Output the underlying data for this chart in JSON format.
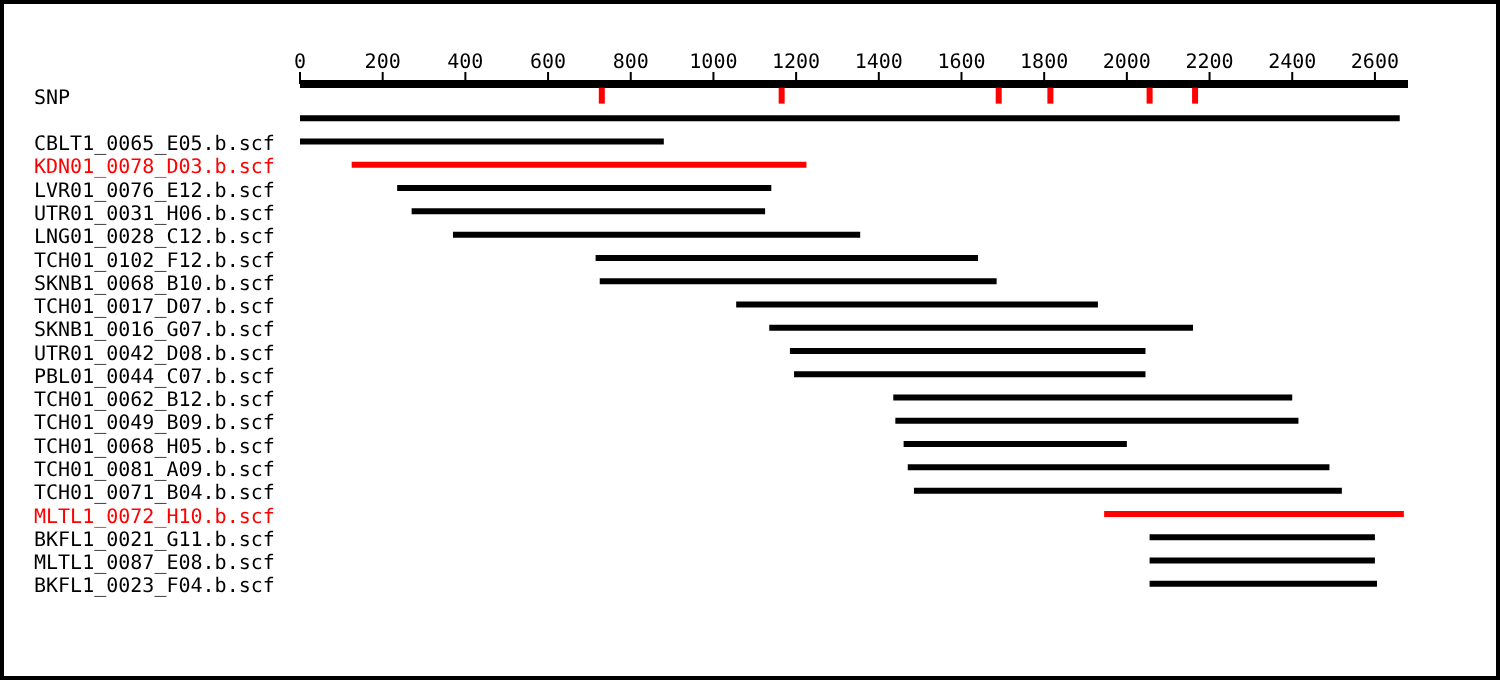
{
  "chart_data": {
    "type": "bar",
    "orientation": "horizontal",
    "marker": "square",
    "xlim": [
      0,
      2680
    ],
    "xticks": [
      0,
      200,
      400,
      600,
      800,
      1000,
      1200,
      1400,
      1600,
      1800,
      2000,
      2200,
      2400,
      2600
    ],
    "categories": [
      "SNP",
      null,
      "CBLT1_0065_E05.b.scf",
      "KDN01_0078_D03.b.scf",
      "LVR01_0076_E12.b.scf",
      "UTR01_0031_H06.b.scf",
      "LNG01_0028_C12.b.scf",
      "TCH01_0102_F12.b.scf",
      "SKNB1_0068_B10.b.scf",
      "TCH01_0017_D07.b.scf",
      "SKNB1_0016_G07.b.scf",
      "UTR01_0042_D08.b.scf",
      "PBL01_0044_C07.b.scf",
      "TCH01_0062_B12.b.scf",
      "TCH01_0049_B09.b.scf",
      "TCH01_0068_H05.b.scf",
      "TCH01_0081_A09.b.scf",
      "TCH01_0071_B04.b.scf",
      "MLTL1_0072_H10.b.scf",
      "BKFL1_0021_G11.b.scf",
      "MLTL1_0087_E08.b.scf",
      "BKFL1_0023_F04.b.scf"
    ],
    "series": [
      {
        "base": [
          null,
          0,
          0,
          125,
          235,
          270,
          370,
          715,
          725,
          1055,
          1135,
          1185,
          1195,
          1435,
          1440,
          1460,
          1470,
          1485,
          1945,
          2055,
          2055,
          2055
        ],
        "values": [
          null,
          2660,
          880,
          1100,
          905,
          855,
          985,
          925,
          960,
          875,
          1025,
          860,
          850,
          965,
          975,
          540,
          1020,
          1035,
          725,
          545,
          545,
          550
        ],
        "colors": [
          null,
          "#000000",
          "#000000",
          "#ff0000",
          "#000000",
          "#000000",
          "#000000",
          "#000000",
          "#000000",
          "#000000",
          "#000000",
          "#000000",
          "#000000",
          "#000000",
          "#000000",
          "#000000",
          "#000000",
          "#000000",
          "#ff0000",
          "#000000",
          "#000000",
          "#000000"
        ]
      },
      {
        "type": "scatter",
        "color": "#ff0000",
        "values": [
          730,
          null,
          null,
          null,
          null,
          null,
          null,
          null,
          null,
          null,
          null,
          null,
          null,
          null,
          null,
          null,
          null,
          null,
          null,
          null,
          null,
          null
        ]
      },
      {
        "type": "scatter",
        "color": "#ff0000",
        "values": [
          1165,
          null,
          null,
          null,
          null,
          null,
          null,
          null,
          null,
          null,
          null,
          null,
          null,
          null,
          null,
          null,
          null,
          null,
          null,
          null,
          null,
          null
        ]
      },
      {
        "type": "scatter",
        "color": "#ff0000",
        "values": [
          1690,
          null,
          null,
          null,
          null,
          null,
          null,
          null,
          null,
          null,
          null,
          null,
          null,
          null,
          null,
          null,
          null,
          null,
          null,
          null,
          null,
          null
        ]
      },
      {
        "type": "scatter",
        "color": "#ff0000",
        "values": [
          1815,
          null,
          null,
          null,
          null,
          null,
          null,
          null,
          null,
          null,
          null,
          null,
          null,
          null,
          null,
          null,
          null,
          null,
          null,
          null,
          null,
          null
        ]
      },
      {
        "type": "scatter",
        "color": "#ff0000",
        "values": [
          2055,
          null,
          null,
          null,
          null,
          null,
          null,
          null,
          null,
          null,
          null,
          null,
          null,
          null,
          null,
          null,
          null,
          null,
          null,
          null,
          null,
          null
        ]
      },
      {
        "type": "scatter",
        "color": "#ff0000",
        "values": [
          2165,
          null,
          null,
          null,
          null,
          null,
          null,
          null,
          null,
          null,
          null,
          null,
          null,
          null,
          null,
          null,
          null,
          null,
          null,
          null,
          null,
          null
        ]
      }
    ]
  }
}
